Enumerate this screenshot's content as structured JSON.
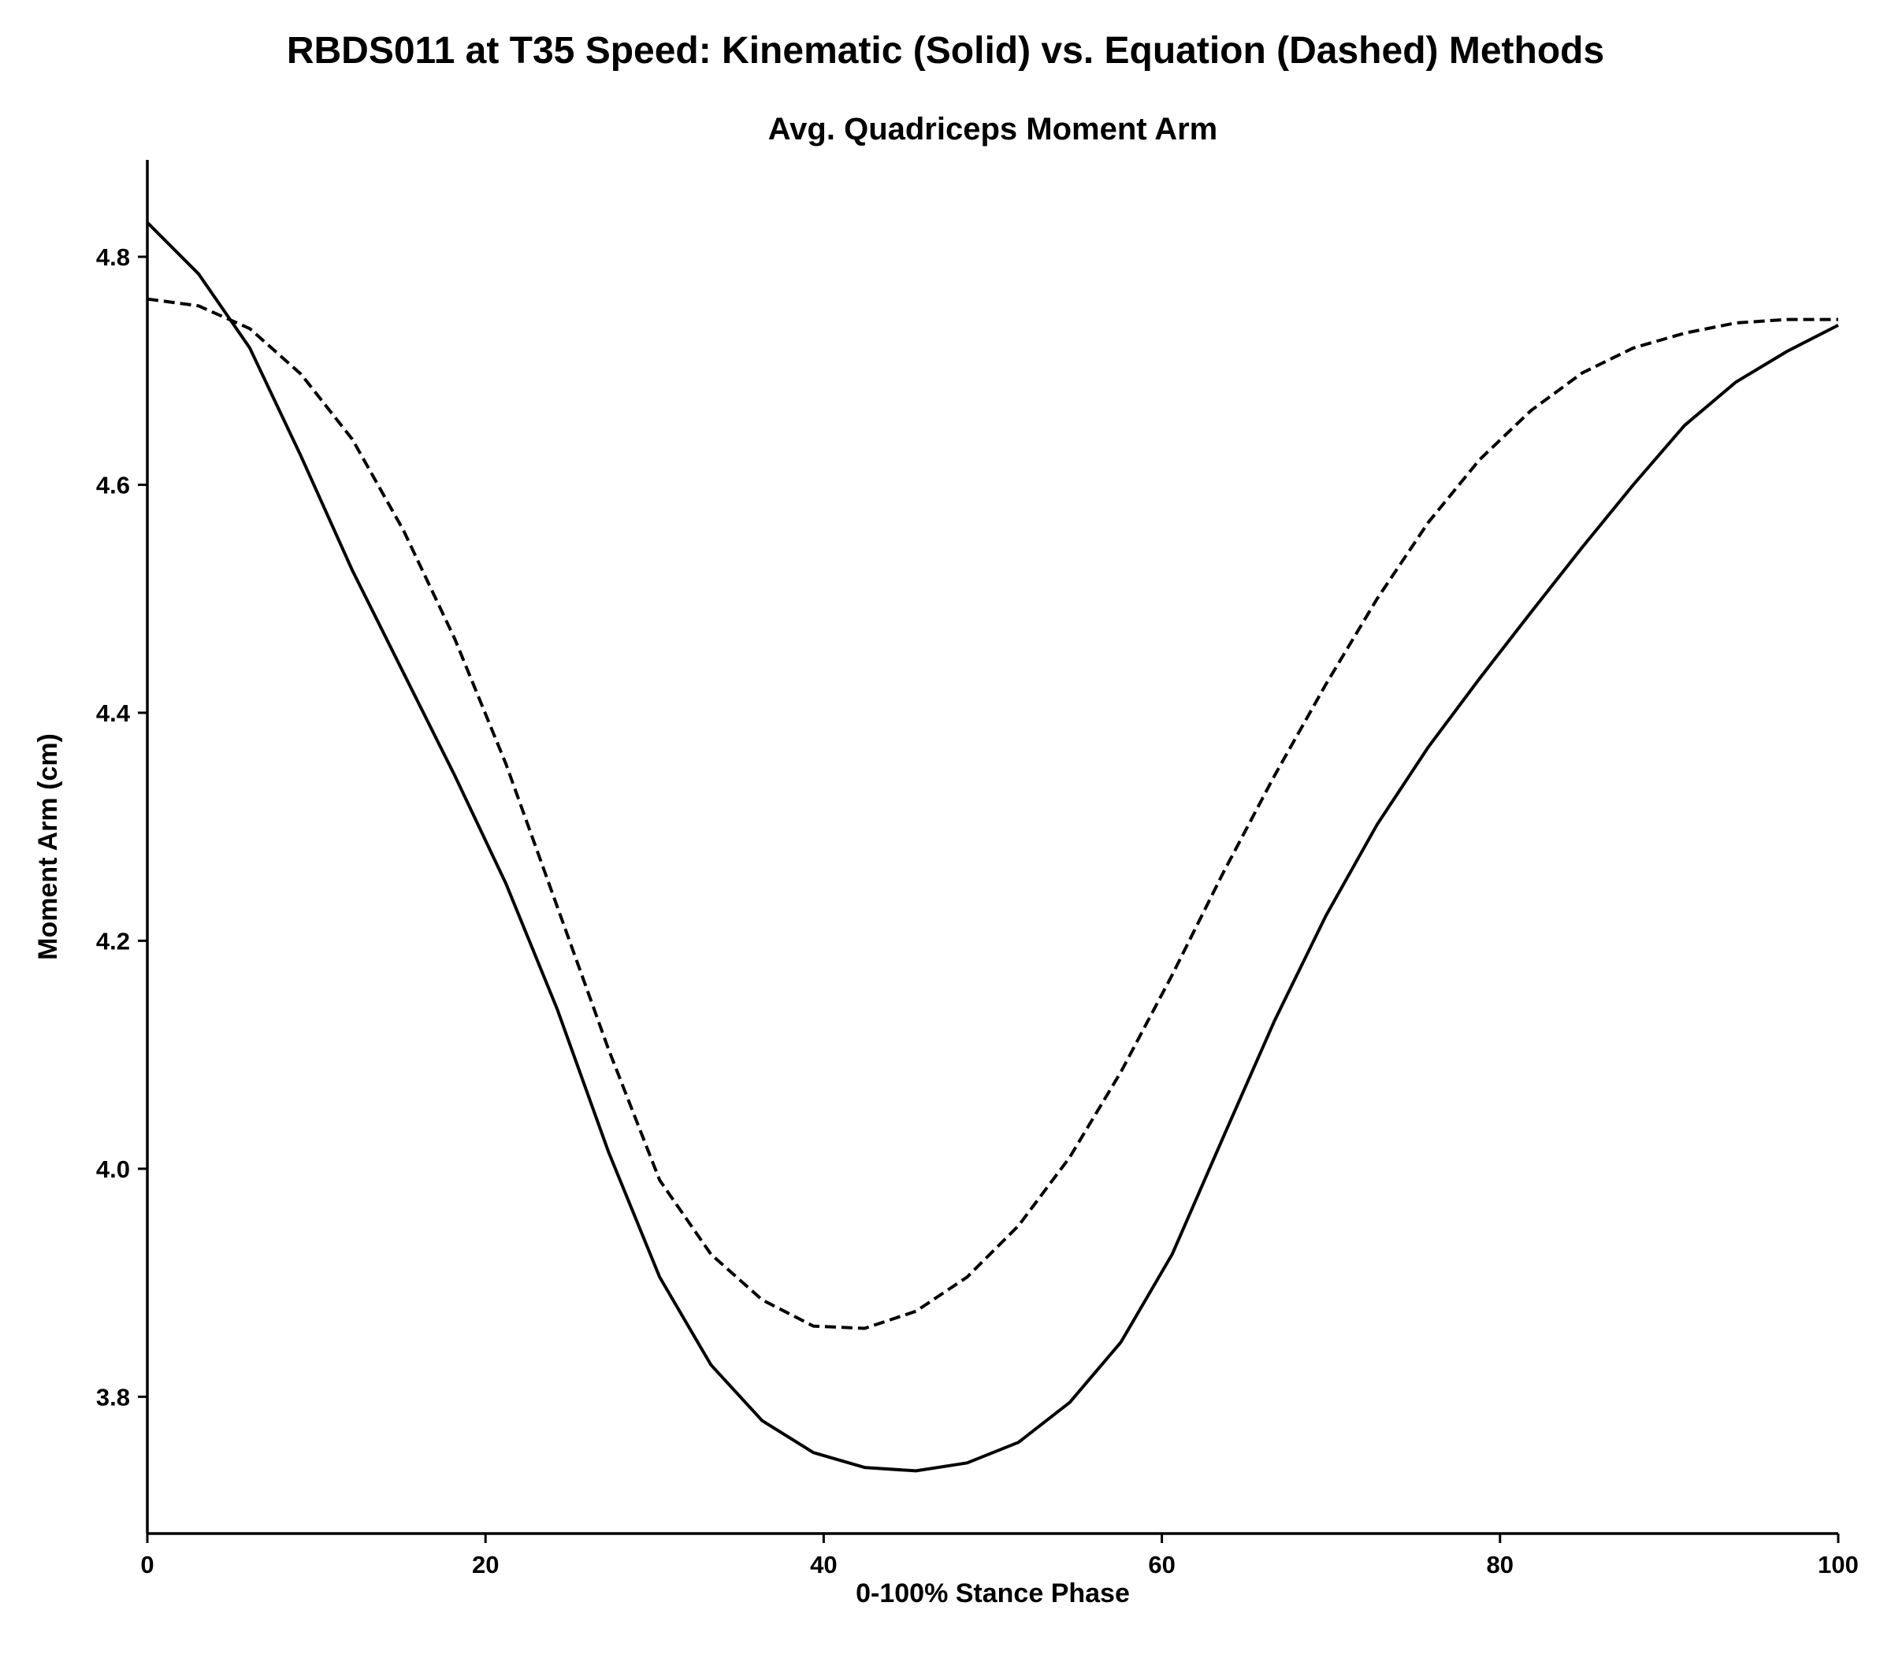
{
  "chart_data": {
    "type": "line",
    "title": "RBDS011 at T35 Speed: Kinematic (Solid) vs. Equation (Dashed) Methods",
    "subtitle": "Avg. Quadriceps Moment Arm",
    "xlabel": "0-100% Stance Phase",
    "ylabel": "Moment Arm (cm)",
    "xlim": [
      0,
      100
    ],
    "ylim": [
      3.68,
      4.885
    ],
    "xticks": [
      0,
      20,
      40,
      60,
      80,
      100
    ],
    "yticks": [
      3.8,
      4.0,
      4.2,
      4.4,
      4.6,
      4.8
    ],
    "xtick_labels": [
      "0",
      "20",
      "40",
      "60",
      "80",
      "100"
    ],
    "ytick_labels": [
      "3.8",
      "4.0",
      "4.2",
      "4.4",
      "4.6",
      "4.8"
    ],
    "grid": false,
    "legend": "none",
    "series": [
      {
        "style": "solid",
        "color": "#000000",
        "x": [
          0,
          3.03,
          6.06,
          9.09,
          12.12,
          15.15,
          18.18,
          21.21,
          24.24,
          27.27,
          30.3,
          33.33,
          36.36,
          39.39,
          42.42,
          45.45,
          48.48,
          51.52,
          54.55,
          57.58,
          60.61,
          63.64,
          66.67,
          69.7,
          72.73,
          75.76,
          78.79,
          81.82,
          84.85,
          87.88,
          90.91,
          93.94,
          96.97,
          100
        ],
        "y": [
          4.83,
          4.785,
          4.72,
          4.625,
          4.525,
          4.435,
          4.345,
          4.25,
          4.14,
          4.015,
          3.905,
          3.828,
          3.779,
          3.751,
          3.738,
          3.735,
          3.742,
          3.76,
          3.795,
          3.848,
          3.925,
          4.028,
          4.13,
          4.222,
          4.302,
          4.37,
          4.43,
          4.488,
          4.545,
          4.6,
          4.652,
          4.69,
          4.717,
          4.74
        ]
      },
      {
        "style": "dashed",
        "color": "#000000",
        "x": [
          0,
          3.03,
          6.06,
          9.09,
          12.12,
          15.15,
          18.18,
          21.21,
          24.24,
          27.27,
          30.3,
          33.33,
          36.36,
          39.39,
          42.42,
          45.45,
          48.48,
          51.52,
          54.55,
          57.58,
          60.61,
          63.64,
          66.67,
          69.7,
          72.73,
          75.76,
          78.79,
          81.82,
          84.85,
          87.88,
          90.91,
          93.94,
          96.97,
          100
        ],
        "y": [
          4.763,
          4.757,
          4.737,
          4.697,
          4.64,
          4.56,
          4.465,
          4.355,
          4.23,
          4.105,
          3.99,
          3.925,
          3.885,
          3.862,
          3.86,
          3.875,
          3.905,
          3.95,
          4.01,
          4.085,
          4.17,
          4.26,
          4.345,
          4.425,
          4.5,
          4.567,
          4.622,
          4.665,
          4.698,
          4.72,
          4.733,
          4.742,
          4.745,
          4.745
        ]
      }
    ]
  }
}
